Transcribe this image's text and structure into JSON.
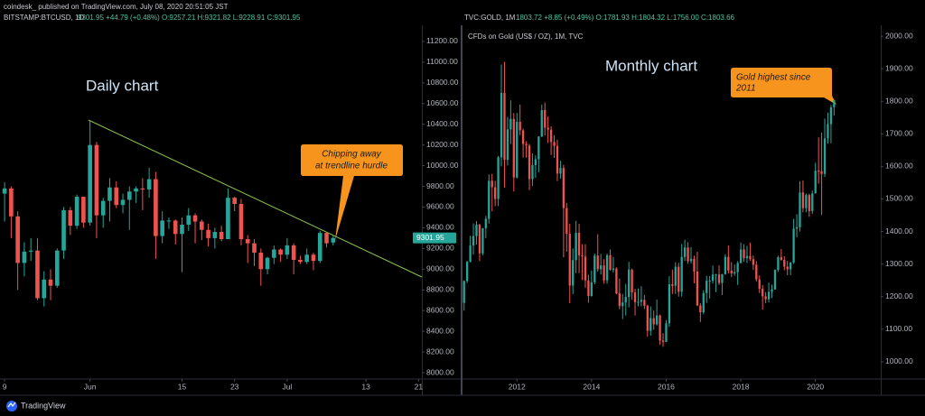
{
  "header": {
    "publisher": "coindesk_  published on TradingView.com, July 08, 2020 20:51:05 JST"
  },
  "chart_data": [
    {
      "type": "candlestick",
      "symbol": "BITSTAMP:BTCUSD, 1D",
      "quote": "9301.95 +44.79 (+0.48%) O:9257.21 H:9321.82 L:9228.91 C:9301.95",
      "annotation": "Daily chart",
      "callout": [
        "Chipping away",
        "at trendline hurdle"
      ],
      "last": 9301.95,
      "up_color": "#26a69a",
      "down_color": "#ef5350",
      "xlim": [
        -0.7,
        63.5
      ],
      "xticks": [
        {
          "value": 0,
          "label": "9"
        },
        {
          "value": 13,
          "label": "Jun"
        },
        {
          "value": 27,
          "label": "15"
        },
        {
          "value": 35,
          "label": "23"
        },
        {
          "value": 43,
          "label": "Jul"
        },
        {
          "value": 55,
          "label": "13"
        },
        {
          "value": 63,
          "label": "21"
        }
      ],
      "ylim": [
        7939,
        11339
      ],
      "yticks": [
        {
          "value": 8000,
          "label": "8000.00"
        },
        {
          "value": 8200,
          "label": "8200.00"
        },
        {
          "value": 8400,
          "label": "8400.00"
        },
        {
          "value": 8600,
          "label": "8600.00"
        },
        {
          "value": 8800,
          "label": "8800.00"
        },
        {
          "value": 9000,
          "label": "9000.00"
        },
        {
          "value": 9200,
          "label": "9200.00"
        },
        {
          "value": 9400,
          "label": "9400.00"
        },
        {
          "value": 9600,
          "label": "9600.00"
        },
        {
          "value": 9800,
          "label": "9800.00"
        },
        {
          "value": 10000,
          "label": "10000.00"
        },
        {
          "value": 10200,
          "label": "10200.00"
        },
        {
          "value": 10400,
          "label": "10400.00"
        },
        {
          "value": 10600,
          "label": "10600.00"
        },
        {
          "value": 10800,
          "label": "10800.00"
        },
        {
          "value": 11000,
          "label": "11000.00"
        },
        {
          "value": 11200,
          "label": "11200.00"
        }
      ],
      "grid": false,
      "ohlc": [
        [
          9730,
          9840,
          9460,
          9780
        ],
        [
          9780,
          9800,
          9300,
          9510
        ],
        [
          9510,
          9560,
          8800,
          9060
        ],
        [
          9060,
          9260,
          8930,
          9170
        ],
        [
          9170,
          9300,
          9080,
          9180
        ],
        [
          9180,
          9300,
          8700,
          8720
        ],
        [
          8720,
          8980,
          8640,
          8900
        ],
        [
          8900,
          9000,
          8700,
          8840
        ],
        [
          8840,
          9200,
          8820,
          9180
        ],
        [
          9180,
          9600,
          9100,
          9570
        ],
        [
          9570,
          9600,
          9330,
          9420
        ],
        [
          9420,
          9720,
          9390,
          9700
        ],
        [
          9700,
          9700,
          9400,
          9450
        ],
        [
          9450,
          10430,
          9420,
          10200
        ],
        [
          10200,
          10230,
          9300,
          9520
        ],
        [
          9520,
          9690,
          9400,
          9660
        ],
        [
          9660,
          9880,
          9460,
          9790
        ],
        [
          9790,
          9850,
          9590,
          9620
        ],
        [
          9620,
          9730,
          9540,
          9670
        ],
        [
          9670,
          9800,
          9380,
          9750
        ],
        [
          9750,
          9800,
          9640,
          9780
        ],
        [
          9780,
          9880,
          9570,
          9770
        ],
        [
          9770,
          9980,
          9690,
          9870
        ],
        [
          9870,
          9940,
          9100,
          9320
        ],
        [
          9320,
          9560,
          9250,
          9470
        ],
        [
          9470,
          9500,
          9390,
          9470
        ],
        [
          9470,
          9480,
          9240,
          9340
        ],
        [
          9340,
          9500,
          8970,
          9430
        ],
        [
          9430,
          9590,
          9370,
          9520
        ],
        [
          9520,
          9540,
          9250,
          9460
        ],
        [
          9460,
          9480,
          9280,
          9380
        ],
        [
          9380,
          9440,
          9220,
          9300
        ],
        [
          9300,
          9400,
          9200,
          9360
        ],
        [
          9360,
          9420,
          9270,
          9290
        ],
        [
          9290,
          9780,
          9290,
          9690
        ],
        [
          9690,
          9700,
          9560,
          9630
        ],
        [
          9630,
          9680,
          9230,
          9290
        ],
        [
          9290,
          9330,
          9060,
          9250
        ],
        [
          9250,
          9290,
          9030,
          9160
        ],
        [
          9160,
          9200,
          8840,
          9000
        ],
        [
          9000,
          9120,
          8950,
          9110
        ],
        [
          9110,
          9230,
          9050,
          9190
        ],
        [
          9190,
          9200,
          9070,
          9140
        ],
        [
          9140,
          9300,
          9100,
          9230
        ],
        [
          9230,
          9250,
          8950,
          9090
        ],
        [
          9090,
          9130,
          9050,
          9070
        ],
        [
          9070,
          9200,
          9050,
          9140
        ],
        [
          9140,
          9160,
          8990,
          9080
        ],
        [
          9080,
          9370,
          9060,
          9350
        ],
        [
          9350,
          9360,
          9210,
          9250
        ],
        [
          9257.21,
          9321.82,
          9228.91,
          9301.95
        ]
      ]
    },
    {
      "type": "candlestick",
      "symbol": "TVC:GOLD, 1M",
      "quote": "1803.72 +8.85 (+0.49%) O:1781.93 H:1804.32 L:1756.00 C:1803.66",
      "subtitle": "CFDs on Gold (US$ / OZ), 1M, TVC",
      "annotation": "Monthly chart",
      "callout": [
        "Gold highest since",
        "2011"
      ],
      "up_color": "#26a69a",
      "down_color": "#ef5350",
      "xlim": [
        -0.5,
        134
      ],
      "xticks": [
        {
          "value": 17,
          "label": "2012"
        },
        {
          "value": 41,
          "label": "2014"
        },
        {
          "value": 65,
          "label": "2016"
        },
        {
          "value": 89,
          "label": "2018"
        },
        {
          "value": 113,
          "label": "2020"
        }
      ],
      "ylim": [
        947,
        2028
      ],
      "yticks": [
        {
          "value": 1000,
          "label": "1000.00"
        },
        {
          "value": 1100,
          "label": "1100.00"
        },
        {
          "value": 1200,
          "label": "1200.00"
        },
        {
          "value": 1300,
          "label": "1300.00"
        },
        {
          "value": 1400,
          "label": "1400.00"
        },
        {
          "value": 1500,
          "label": "1500.00"
        },
        {
          "value": 1600,
          "label": "1600.00"
        },
        {
          "value": 1700,
          "label": "1700.00"
        },
        {
          "value": 1800,
          "label": "1800.00"
        },
        {
          "value": 1900,
          "label": "1900.00"
        },
        {
          "value": 2000,
          "label": "2000.00"
        }
      ],
      "grid": false,
      "ohlc": [
        [
          1181,
          1250,
          1157,
          1248
        ],
        [
          1248,
          1310,
          1242,
          1307
        ],
        [
          1307,
          1387,
          1305,
          1357
        ],
        [
          1357,
          1425,
          1329,
          1386
        ],
        [
          1386,
          1432,
          1360,
          1421
        ],
        [
          1421,
          1424,
          1309,
          1333
        ],
        [
          1333,
          1411,
          1327,
          1410
        ],
        [
          1410,
          1448,
          1380,
          1439
        ],
        [
          1439,
          1575,
          1424,
          1556
        ],
        [
          1556,
          1577,
          1462,
          1536
        ],
        [
          1536,
          1556,
          1478,
          1500
        ],
        [
          1500,
          1632,
          1478,
          1628
        ],
        [
          1628,
          1913,
          1600,
          1826
        ],
        [
          1826,
          1921,
          1535,
          1620
        ],
        [
          1620,
          1752,
          1603,
          1714
        ],
        [
          1714,
          1803,
          1669,
          1746
        ],
        [
          1746,
          1764,
          1523,
          1566
        ],
        [
          1566,
          1764,
          1563,
          1737
        ],
        [
          1737,
          1790,
          1696,
          1711
        ],
        [
          1711,
          1716,
          1627,
          1669
        ],
        [
          1669,
          1677,
          1627,
          1664
        ],
        [
          1664,
          1669,
          1527,
          1561
        ],
        [
          1561,
          1640,
          1540,
          1604
        ],
        [
          1604,
          1634,
          1565,
          1622
        ],
        [
          1622,
          1693,
          1582,
          1692
        ],
        [
          1692,
          1790,
          1690,
          1773
        ],
        [
          1773,
          1796,
          1695,
          1719
        ],
        [
          1719,
          1754,
          1672,
          1713
        ],
        [
          1713,
          1723,
          1635,
          1675
        ],
        [
          1675,
          1696,
          1626,
          1663
        ],
        [
          1663,
          1682,
          1555,
          1578
        ],
        [
          1578,
          1617,
          1562,
          1595
        ],
        [
          1595,
          1605,
          1321,
          1472
        ],
        [
          1472,
          1488,
          1338,
          1393
        ],
        [
          1393,
          1424,
          1180,
          1234
        ],
        [
          1234,
          1348,
          1208,
          1312
        ],
        [
          1312,
          1433,
          1272,
          1396
        ],
        [
          1396,
          1424,
          1272,
          1327
        ],
        [
          1327,
          1361,
          1251,
          1323
        ],
        [
          1323,
          1361,
          1227,
          1250
        ],
        [
          1250,
          1267,
          1181,
          1202
        ],
        [
          1202,
          1280,
          1200,
          1244
        ],
        [
          1244,
          1332,
          1238,
          1326
        ],
        [
          1326,
          1392,
          1277,
          1284
        ],
        [
          1284,
          1331,
          1268,
          1296
        ],
        [
          1296,
          1315,
          1240,
          1250
        ],
        [
          1250,
          1332,
          1240,
          1327
        ],
        [
          1327,
          1345,
          1280,
          1282
        ],
        [
          1282,
          1322,
          1274,
          1286
        ],
        [
          1286,
          1290,
          1207,
          1210
        ],
        [
          1210,
          1255,
          1161,
          1171
        ],
        [
          1171,
          1208,
          1131,
          1182
        ],
        [
          1182,
          1239,
          1142,
          1199
        ],
        [
          1199,
          1307,
          1167,
          1283
        ],
        [
          1283,
          1286,
          1191,
          1213
        ],
        [
          1213,
          1224,
          1142,
          1183
        ],
        [
          1183,
          1225,
          1170,
          1184
        ],
        [
          1184,
          1232,
          1170,
          1190
        ],
        [
          1190,
          1205,
          1162,
          1172
        ],
        [
          1172,
          1175,
          1077,
          1095
        ],
        [
          1095,
          1170,
          1080,
          1134
        ],
        [
          1134,
          1157,
          1098,
          1115
        ],
        [
          1115,
          1191,
          1111,
          1142
        ],
        [
          1142,
          1145,
          1052,
          1065
        ],
        [
          1065,
          1088,
          1046,
          1061
        ],
        [
          1061,
          1128,
          1060,
          1118
        ],
        [
          1118,
          1263,
          1107,
          1238
        ],
        [
          1238,
          1283,
          1208,
          1233
        ],
        [
          1233,
          1306,
          1208,
          1292
        ],
        [
          1292,
          1304,
          1200,
          1215
        ],
        [
          1215,
          1362,
          1200,
          1322
        ],
        [
          1322,
          1375,
          1310,
          1351
        ],
        [
          1351,
          1367,
          1301,
          1309
        ],
        [
          1309,
          1352,
          1302,
          1316
        ],
        [
          1316,
          1326,
          1241,
          1277
        ],
        [
          1277,
          1338,
          1171,
          1173
        ],
        [
          1173,
          1180,
          1122,
          1152
        ],
        [
          1152,
          1220,
          1146,
          1211
        ],
        [
          1211,
          1264,
          1181,
          1249
        ],
        [
          1249,
          1263,
          1194,
          1249
        ],
        [
          1249,
          1295,
          1240,
          1268
        ],
        [
          1268,
          1270,
          1214,
          1268
        ],
        [
          1268,
          1296,
          1236,
          1242
        ],
        [
          1242,
          1270,
          1205,
          1269
        ],
        [
          1269,
          1330,
          1267,
          1322
        ],
        [
          1322,
          1357,
          1271,
          1280
        ],
        [
          1280,
          1306,
          1260,
          1271
        ],
        [
          1271,
          1299,
          1264,
          1275
        ],
        [
          1275,
          1309,
          1236,
          1303
        ],
        [
          1303,
          1366,
          1302,
          1345
        ],
        [
          1345,
          1361,
          1307,
          1318
        ],
        [
          1318,
          1356,
          1303,
          1325
        ],
        [
          1325,
          1366,
          1310,
          1315
        ],
        [
          1315,
          1326,
          1282,
          1298
        ],
        [
          1298,
          1309,
          1246,
          1253
        ],
        [
          1253,
          1265,
          1211,
          1224
        ],
        [
          1224,
          1236,
          1160,
          1201
        ],
        [
          1201,
          1214,
          1180,
          1192
        ],
        [
          1192,
          1243,
          1182,
          1215
        ],
        [
          1215,
          1237,
          1196,
          1222
        ],
        [
          1222,
          1284,
          1221,
          1282
        ],
        [
          1282,
          1326,
          1276,
          1321
        ],
        [
          1321,
          1346,
          1310,
          1313
        ],
        [
          1313,
          1324,
          1281,
          1292
        ],
        [
          1292,
          1310,
          1266,
          1284
        ],
        [
          1284,
          1306,
          1266,
          1305
        ],
        [
          1305,
          1439,
          1301,
          1409
        ],
        [
          1409,
          1453,
          1382,
          1413
        ],
        [
          1413,
          1555,
          1400,
          1520
        ],
        [
          1520,
          1557,
          1459,
          1472
        ],
        [
          1472,
          1517,
          1459,
          1512
        ],
        [
          1512,
          1516,
          1445,
          1463
        ],
        [
          1463,
          1526,
          1454,
          1517
        ],
        [
          1517,
          1611,
          1517,
          1587
        ],
        [
          1587,
          1689,
          1547,
          1585
        ],
        [
          1585,
          1704,
          1451,
          1577
        ],
        [
          1577,
          1747,
          1568,
          1686
        ],
        [
          1686,
          1765,
          1670,
          1730
        ],
        [
          1730,
          1789,
          1671,
          1781
        ],
        [
          1781.93,
          1804.32,
          1756,
          1803.66
        ]
      ]
    }
  ],
  "footer": {
    "brand": "TradingView"
  }
}
